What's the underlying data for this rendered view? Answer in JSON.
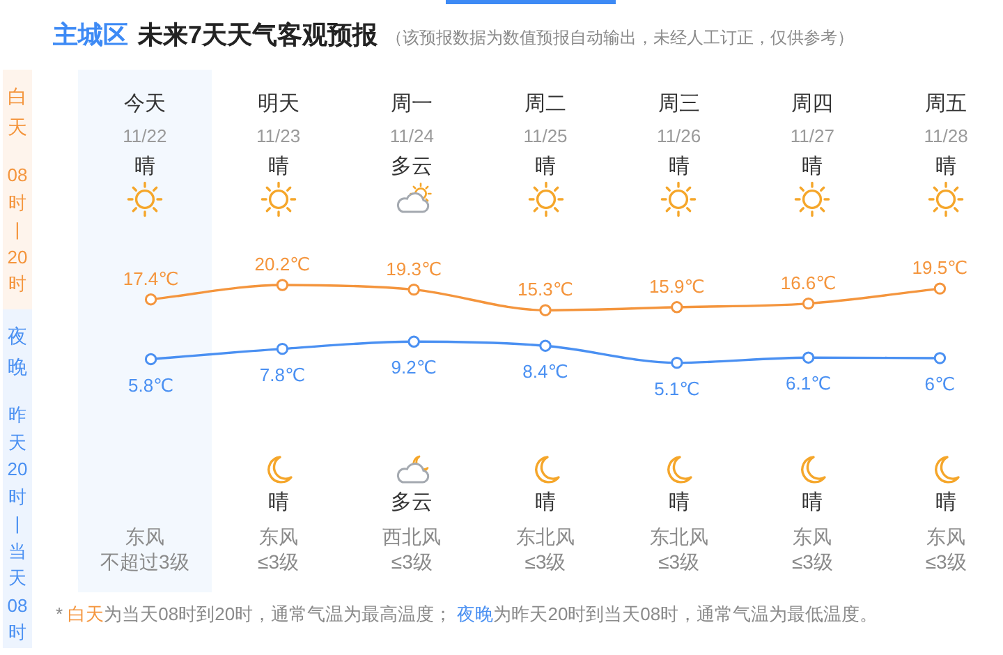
{
  "chart_data": {
    "type": "line",
    "title": "主城区 未来7天天气客观预报",
    "subtitle": "（该预报数据为数值预报自动输出，未经人工订正，仅供参考）",
    "categories": [
      "今天",
      "明天",
      "周一",
      "周二",
      "周三",
      "周四",
      "周五"
    ],
    "series": [
      {
        "name": "白天",
        "color": "#f4953d",
        "values": [
          17.4,
          20.2,
          19.3,
          15.3,
          15.9,
          16.6,
          19.5
        ],
        "value_labels": [
          "17.4℃",
          "20.2℃",
          "19.3℃",
          "15.3℃",
          "15.9℃",
          "16.6℃",
          "19.5℃"
        ]
      },
      {
        "name": "夜晚",
        "color": "#4a90f2",
        "values": [
          5.8,
          7.8,
          9.2,
          8.4,
          5.1,
          6.1,
          6
        ],
        "value_labels": [
          "5.8℃",
          "7.8℃",
          "9.2℃",
          "8.4℃",
          "5.1℃",
          "6.1℃",
          "6℃"
        ]
      }
    ],
    "tick_labels": "x",
    "marker": "circle",
    "bands": [
      {
        "axis": "x",
        "from": "今天",
        "to": "今天",
        "color": "#f3f8fe"
      }
    ],
    "annotations": [
      "08时|20时",
      "昨天20时|当天08时",
      "11/22",
      "11/23",
      "11/24",
      "11/25",
      "11/26",
      "11/27",
      "11/28",
      "晴",
      "晴",
      "多云",
      "晴",
      "晴",
      "晴",
      "晴",
      "晴",
      "多云",
      "晴",
      "晴",
      "晴",
      "晴",
      "东风",
      "东风",
      "西北风",
      "东北风",
      "东北风",
      "东风",
      "东风",
      "不超过3级",
      "≤3级",
      "≤3级",
      "≤3级",
      "≤3级",
      "≤3级",
      "≤3级",
      "* 白天为当天08时到20时，通常气温为最高温度； 夜晚为昨天20时到当天08时，通常气温为最低温度。"
    ]
  }
}
